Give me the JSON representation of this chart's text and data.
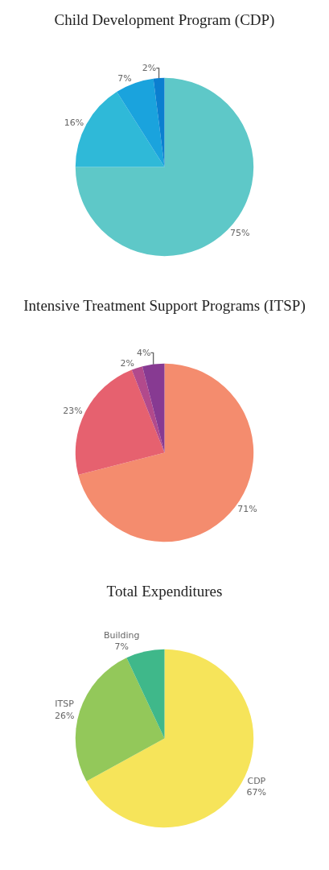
{
  "chart_data": [
    {
      "type": "pie",
      "title": "Child Development Program (CDP)",
      "categories": [
        null,
        null,
        null,
        null
      ],
      "values": [
        75,
        16,
        7,
        2
      ],
      "value_labels": [
        "75%",
        "16%",
        "7%",
        "2%"
      ],
      "colors": [
        "#5ec8c8",
        "#2fb9d8",
        "#1aa3dd",
        "#0b7fd0"
      ]
    },
    {
      "type": "pie",
      "title": "Intensive Treatment Support Programs (ITSP)",
      "categories": [
        null,
        null,
        null,
        null
      ],
      "values": [
        71,
        23,
        2,
        4
      ],
      "value_labels": [
        "71%",
        "23%",
        "2%",
        "4%"
      ],
      "colors": [
        "#f48c6e",
        "#e6616f",
        "#b24a8c",
        "#873a92"
      ]
    },
    {
      "type": "pie",
      "title": "Total Expenditures",
      "categories": [
        "CDP",
        "ITSP",
        "Building"
      ],
      "values": [
        67,
        26,
        7
      ],
      "value_labels": [
        "67%",
        "26%",
        "7%"
      ],
      "colors": [
        "#f6e45a",
        "#93c85a",
        "#3fb88a"
      ]
    }
  ]
}
